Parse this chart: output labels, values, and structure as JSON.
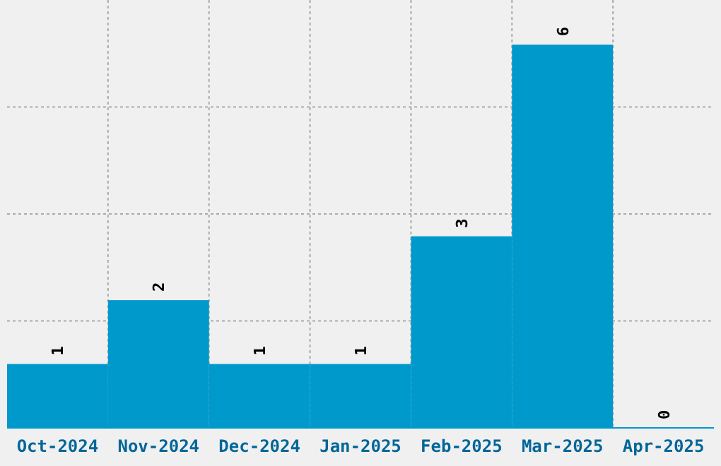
{
  "chart_data": {
    "type": "bar",
    "categories": [
      "Oct-2024",
      "Nov-2024",
      "Dec-2024",
      "Jan-2025",
      "Feb-2025",
      "Mar-2025",
      "Apr-2025"
    ],
    "values": [
      1,
      2,
      1,
      1,
      3,
      6,
      0
    ],
    "color": "#0099cc",
    "data_labels": true,
    "grid": true,
    "tick_labels": "x",
    "ylim": [
      0,
      6.7
    ],
    "yticks": [
      {
        "value": 1.675,
        "label": null
      },
      {
        "value": 3.35,
        "label": null
      },
      {
        "value": 5.025,
        "label": null
      }
    ]
  }
}
